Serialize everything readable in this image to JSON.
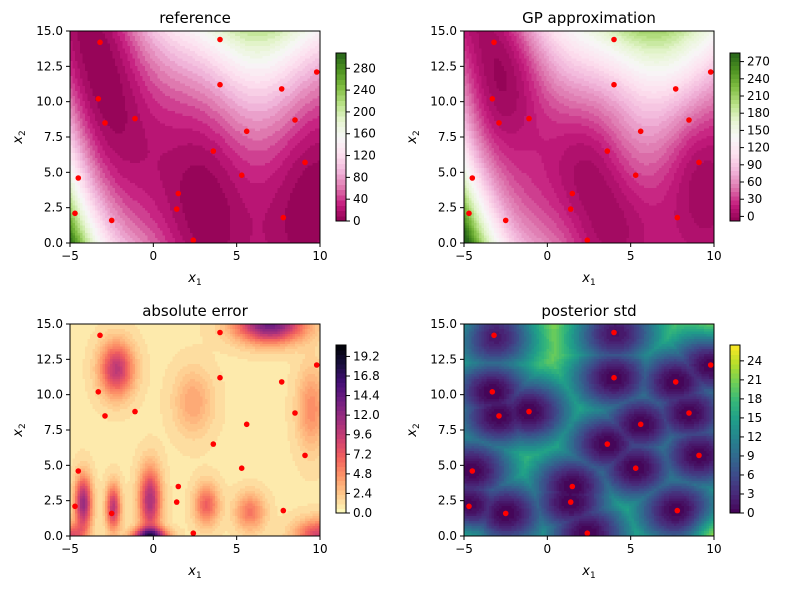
{
  "chart_data": [
    {
      "type": "heatmap",
      "title": "reference",
      "xlabel": "x",
      "xlabel_sub": "1",
      "ylabel": "x",
      "ylabel_sub": "2",
      "xlim": [
        -5,
        10
      ],
      "ylim": [
        0,
        15
      ],
      "x_ticks": [
        "−5",
        "0",
        "5",
        "10"
      ],
      "y_ticks": [
        "0.0",
        "2.5",
        "5.0",
        "7.5",
        "10.0",
        "12.5",
        "15.0"
      ],
      "colormap": "PiYG",
      "colorbar_ticks": [
        "0",
        "40",
        "80",
        "120",
        "160",
        "200",
        "240",
        "280"
      ],
      "colorbar_range": [
        0,
        308
      ]
    },
    {
      "type": "heatmap",
      "title": "GP approximation",
      "xlabel": "x",
      "xlabel_sub": "1",
      "ylabel": "x",
      "ylabel_sub": "2",
      "xlim": [
        -5,
        10
      ],
      "ylim": [
        0,
        15
      ],
      "x_ticks": [
        "−5",
        "0",
        "5",
        "10"
      ],
      "y_ticks": [
        "0.0",
        "2.5",
        "5.0",
        "7.5",
        "10.0",
        "12.5",
        "15.0"
      ],
      "colormap": "PiYG",
      "colorbar_ticks": [
        "0",
        "30",
        "60",
        "90",
        "120",
        "150",
        "180",
        "210",
        "240",
        "270"
      ],
      "colorbar_range": [
        -8,
        285
      ]
    },
    {
      "type": "heatmap",
      "title": "absolute error",
      "xlabel": "x",
      "xlabel_sub": "1",
      "ylabel": "x",
      "ylabel_sub": "2",
      "xlim": [
        -5,
        10
      ],
      "ylim": [
        0,
        15
      ],
      "x_ticks": [
        "−5",
        "0",
        "5",
        "10"
      ],
      "y_ticks": [
        "0.0",
        "2.5",
        "5.0",
        "7.5",
        "10.0",
        "12.5",
        "15.0"
      ],
      "colormap": "magma_r",
      "colorbar_ticks": [
        "0.0",
        "2.4",
        "4.8",
        "7.2",
        "9.6",
        "12.0",
        "14.4",
        "16.8",
        "19.2"
      ],
      "colorbar_range": [
        0,
        20.6
      ]
    },
    {
      "type": "heatmap",
      "title": "posterior std",
      "xlabel": "x",
      "xlabel_sub": "1",
      "ylabel": "x",
      "ylabel_sub": "2",
      "xlim": [
        -5,
        10
      ],
      "ylim": [
        0,
        15
      ],
      "x_ticks": [
        "−5",
        "0",
        "5",
        "10"
      ],
      "y_ticks": [
        "0.0",
        "2.5",
        "5.0",
        "7.5",
        "10.0",
        "12.5",
        "15.0"
      ],
      "colormap": "viridis",
      "colorbar_ticks": [
        "0",
        "3",
        "6",
        "9",
        "12",
        "15",
        "18",
        "21",
        "24"
      ],
      "colorbar_range": [
        0,
        26.5
      ]
    }
  ],
  "sample_points": {
    "color": "#ff0000",
    "x": [
      -4.7,
      -4.5,
      -3.2,
      -3.3,
      -2.9,
      -2.5,
      -1.1,
      1.4,
      1.5,
      2.4,
      3.6,
      4.0,
      4.0,
      5.3,
      5.6,
      7.7,
      7.8,
      8.5,
      9.1,
      9.8
    ],
    "y": [
      2.1,
      4.6,
      14.2,
      10.2,
      8.5,
      1.6,
      8.8,
      2.4,
      3.5,
      0.2,
      6.5,
      14.4,
      11.2,
      4.8,
      7.9,
      10.9,
      1.8,
      8.7,
      5.7,
      12.1
    ]
  }
}
